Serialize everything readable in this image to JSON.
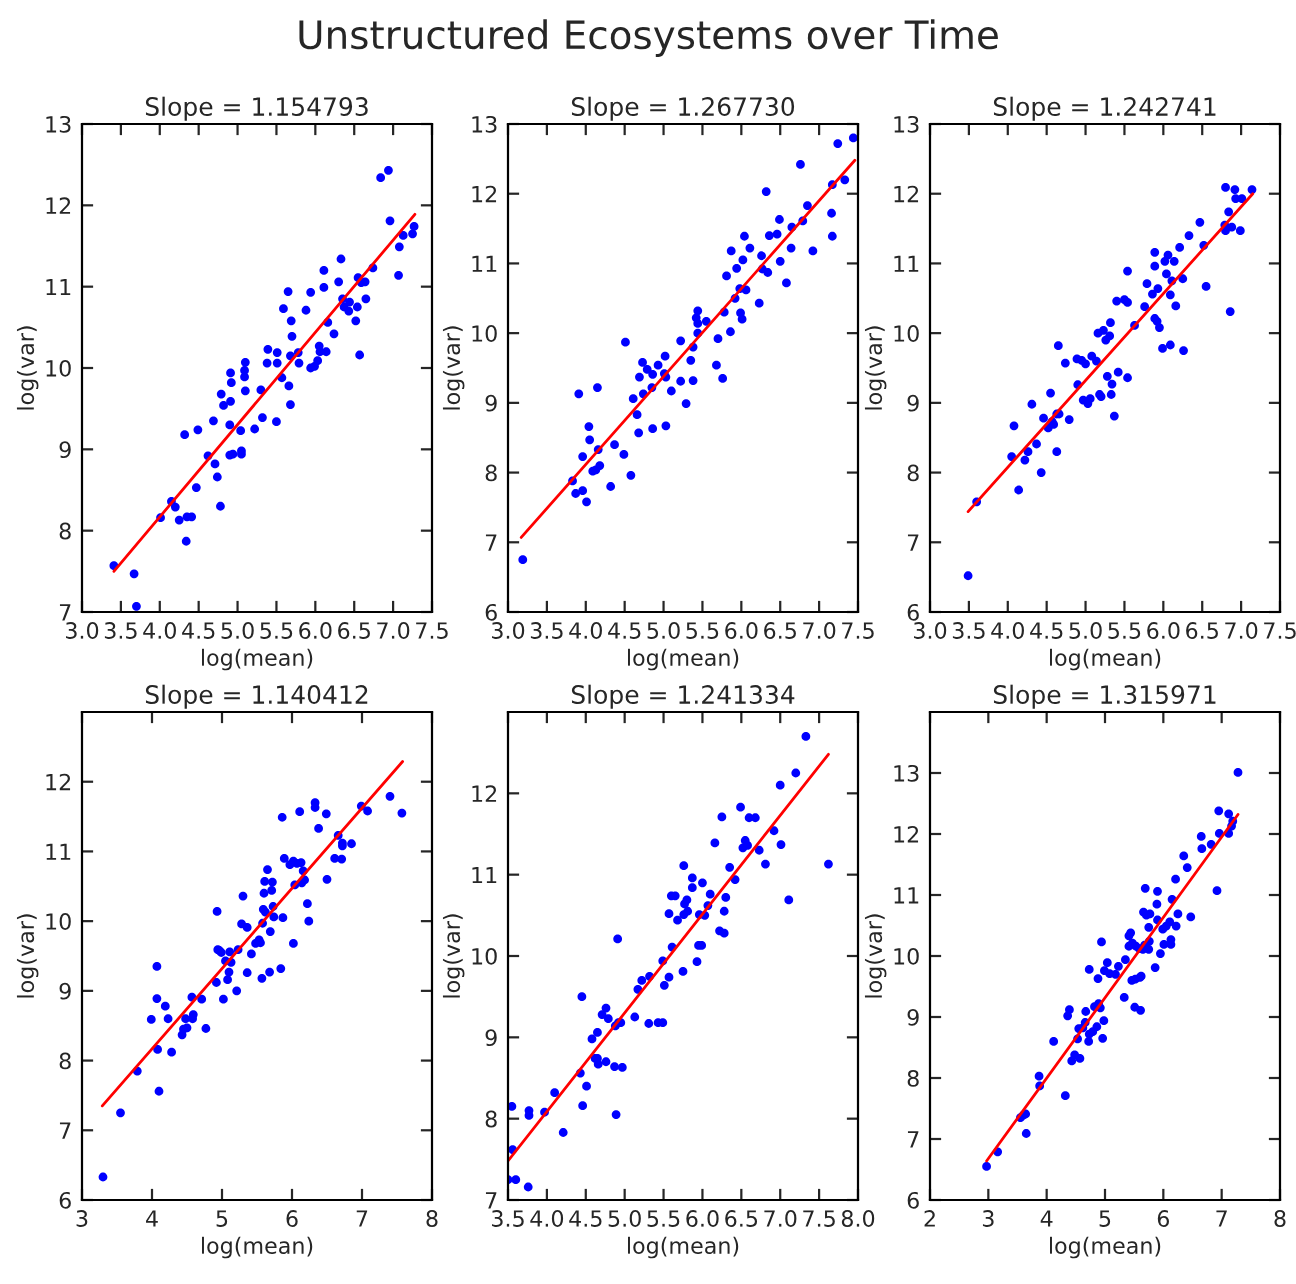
{
  "chart_data": [
    {
      "type": "scatter",
      "title": "Slope = 1.154793",
      "xlabel": "log(mean)",
      "ylabel": "log(var)",
      "annotations": [
        "Unstructured Ecosystems over Time"
      ],
      "xlim": [
        3.0,
        7.5
      ],
      "ylim": [
        7,
        13
      ],
      "xticks": [
        {
          "value": 3,
          "label": "3.0"
        },
        3.5,
        {
          "value": 4,
          "label": "4.0"
        },
        4.5,
        {
          "value": 5,
          "label": "5.0"
        },
        5.5,
        {
          "value": 6,
          "label": "6.0"
        },
        6.5,
        {
          "value": 7,
          "label": "7.0"
        },
        7.5
      ],
      "yticks": [
        7,
        8,
        9,
        10,
        11,
        12,
        13
      ],
      "grid": false,
      "marker": "circle",
      "series": [
        {
          "type": "scatter",
          "color": "#0000ff",
          "x": [
            3.41,
            3.67,
            3.7,
            4.01,
            4.15,
            4.2,
            4.25,
            4.32,
            4.34,
            4.35,
            4.41,
            4.47,
            4.49,
            4.62,
            4.69,
            4.71,
            4.74,
            4.78,
            4.79,
            4.82,
            4.9,
            4.91,
            4.91,
            4.92,
            4.9,
            4.94,
            5.04,
            5.05,
            5.05,
            5.09,
            5.1,
            5.09,
            5.1,
            5.22,
            5.3,
            5.32,
            5.39,
            5.38,
            5.5,
            5.51,
            5.51,
            5.57,
            5.59,
            5.65,
            5.66,
            5.68,
            5.68,
            5.69,
            5.7,
            5.78,
            5.79,
            5.88,
            5.94,
            5.94,
            5.99,
            6.03,
            6.05,
            6.06,
            6.11,
            6.11,
            6.14,
            6.16,
            6.24,
            6.3,
            6.33,
            6.35,
            6.37,
            6.43,
            6.44,
            6.52,
            6.54,
            6.55,
            6.57,
            6.59,
            6.64,
            6.65,
            6.74,
            6.84,
            6.94,
            6.96,
            7.07,
            7.08,
            7.13,
            7.25,
            7.27
          ],
          "values": [
            7.57,
            7.47,
            7.07,
            8.16,
            8.36,
            8.29,
            8.13,
            9.18,
            7.87,
            8.17,
            8.17,
            8.53,
            9.24,
            8.92,
            9.35,
            8.82,
            8.66,
            8.3,
            9.68,
            9.54,
            9.3,
            9.59,
            9.94,
            9.82,
            8.93,
            8.94,
            9.23,
            8.98,
            8.94,
            9.97,
            10.07,
            9.89,
            9.72,
            9.25,
            9.73,
            9.39,
            10.23,
            10.06,
            9.34,
            10.19,
            10.06,
            9.88,
            10.73,
            10.94,
            9.78,
            9.55,
            10.15,
            10.58,
            10.39,
            10.19,
            10.06,
            10.71,
            10.0,
            10.93,
            10.02,
            10.09,
            10.27,
            10.2,
            11.2,
            10.99,
            10.2,
            10.56,
            10.42,
            11.06,
            11.34,
            10.85,
            10.75,
            10.7,
            10.81,
            10.58,
            10.75,
            11.11,
            10.16,
            11.05,
            11.06,
            10.85,
            11.23,
            12.34,
            12.43,
            11.81,
            11.14,
            11.49,
            11.63,
            11.65,
            11.74
          ]
        },
        {
          "type": "line",
          "color": "#ff0000",
          "marker": "none",
          "x": [
            3.41,
            7.28
          ],
          "values": [
            7.5,
            11.89
          ]
        }
      ]
    },
    {
      "type": "scatter",
      "title": "Slope = 1.267730",
      "xlabel": "log(mean)",
      "ylabel": "log(var)",
      "xlim": [
        3.0,
        7.5
      ],
      "ylim": [
        6,
        13
      ],
      "xticks": [
        {
          "value": 3,
          "label": "3.0"
        },
        3.5,
        {
          "value": 4,
          "label": "4.0"
        },
        4.5,
        {
          "value": 5,
          "label": "5.0"
        },
        5.5,
        {
          "value": 6,
          "label": "6.0"
        },
        6.5,
        {
          "value": 7,
          "label": "7.0"
        },
        7.5
      ],
      "yticks": [
        6,
        7,
        8,
        9,
        10,
        11,
        12,
        13
      ],
      "grid": false,
      "marker": "circle",
      "series": [
        {
          "type": "scatter",
          "color": "#0000ff",
          "x": [
            3.19,
            3.83,
            3.87,
            3.91,
            3.96,
            3.96,
            4.01,
            4.04,
            4.05,
            4.09,
            4.13,
            4.15,
            4.16,
            4.18,
            4.32,
            4.37,
            4.49,
            4.51,
            4.58,
            4.61,
            4.66,
            4.68,
            4.69,
            4.73,
            4.74,
            4.79,
            4.85,
            4.86,
            4.86,
            4.93,
            5.01,
            5.02,
            5.03,
            5.03,
            5.1,
            5.22,
            5.22,
            5.29,
            5.35,
            5.38,
            5.38,
            5.42,
            5.44,
            5.44,
            5.44,
            5.55,
            5.68,
            5.7,
            5.76,
            5.78,
            5.81,
            5.86,
            5.87,
            5.92,
            5.94,
            5.98,
            5.99,
            6.01,
            6.02,
            6.04,
            6.06,
            6.11,
            6.23,
            6.26,
            6.27,
            6.32,
            6.34,
            6.36,
            6.46,
            6.49,
            6.5,
            6.58,
            6.64,
            6.65,
            6.76,
            6.79,
            6.85,
            6.92,
            7.16,
            7.17,
            7.17,
            7.24,
            7.33,
            7.44
          ],
          "values": [
            6.75,
            7.88,
            7.7,
            9.13,
            8.23,
            7.74,
            7.58,
            8.66,
            8.47,
            8.02,
            8.04,
            9.22,
            8.33,
            8.1,
            7.8,
            8.4,
            8.26,
            9.87,
            7.96,
            9.06,
            8.83,
            8.57,
            9.37,
            9.58,
            9.13,
            9.48,
            9.22,
            8.63,
            9.41,
            9.54,
            9.42,
            9.67,
            8.67,
            9.37,
            9.17,
            9.31,
            9.89,
            8.99,
            9.61,
            9.32,
            9.8,
            10.22,
            10.32,
            10.14,
            10.0,
            10.17,
            9.54,
            9.92,
            9.35,
            10.3,
            10.82,
            10.02,
            11.18,
            10.5,
            10.93,
            10.64,
            10.29,
            10.2,
            11.05,
            11.39,
            10.62,
            11.22,
            10.43,
            11.11,
            10.92,
            12.03,
            10.87,
            11.4,
            11.42,
            11.63,
            11.03,
            10.72,
            11.22,
            11.52,
            12.42,
            11.61,
            11.83,
            11.18,
            11.72,
            12.13,
            11.39,
            12.72,
            12.2,
            12.8
          ]
        },
        {
          "type": "line",
          "color": "#ff0000",
          "marker": "none",
          "x": [
            3.17,
            7.46
          ],
          "values": [
            7.07,
            12.48
          ]
        }
      ]
    },
    {
      "type": "scatter",
      "title": "Slope = 1.242741",
      "xlabel": "log(mean)",
      "ylabel": "log(var)",
      "xlim": [
        3.0,
        7.5
      ],
      "ylim": [
        6,
        13
      ],
      "xticks": [
        {
          "value": 3,
          "label": "3.0"
        },
        3.5,
        {
          "value": 4,
          "label": "4.0"
        },
        4.5,
        {
          "value": 5,
          "label": "5.0"
        },
        5.5,
        {
          "value": 6,
          "label": "6.0"
        },
        6.5,
        {
          "value": 7,
          "label": "7.0"
        },
        7.5
      ],
      "yticks": [
        6,
        7,
        8,
        9,
        10,
        11,
        12,
        13
      ],
      "grid": false,
      "marker": "circle",
      "series": [
        {
          "type": "scatter",
          "color": "#0000ff",
          "x": [
            3.49,
            3.6,
            4.05,
            4.08,
            4.14,
            4.22,
            4.26,
            4.31,
            4.37,
            4.43,
            4.46,
            4.52,
            4.55,
            4.57,
            4.59,
            4.63,
            4.63,
            4.65,
            4.66,
            4.74,
            4.79,
            4.9,
            4.89,
            4.95,
            4.97,
            5.0,
            5.03,
            5.06,
            5.08,
            5.14,
            5.16,
            5.18,
            5.2,
            5.23,
            5.26,
            5.28,
            5.31,
            5.32,
            5.33,
            5.34,
            5.37,
            5.4,
            5.42,
            5.5,
            5.54,
            5.54,
            5.54,
            5.63,
            5.76,
            5.79,
            5.86,
            5.89,
            5.89,
            5.89,
            5.92,
            5.93,
            5.95,
            5.99,
            6.02,
            6.04,
            6.06,
            6.09,
            6.09,
            6.11,
            6.14,
            6.16,
            6.21,
            6.25,
            6.26,
            6.33,
            6.47,
            6.52,
            6.55,
            6.79,
            6.8,
            6.8,
            6.84,
            6.86,
            6.88,
            6.92,
            6.93,
            6.99,
            7.01,
            7.14
          ],
          "values": [
            6.52,
            7.58,
            8.23,
            8.67,
            7.75,
            8.18,
            8.3,
            8.98,
            8.41,
            8.0,
            8.78,
            8.64,
            9.14,
            8.73,
            8.69,
            8.84,
            8.3,
            9.82,
            8.84,
            9.57,
            8.76,
            9.26,
            9.63,
            9.61,
            9.04,
            9.56,
            8.99,
            9.06,
            9.67,
            9.6,
            10.0,
            9.12,
            9.09,
            10.04,
            9.9,
            9.38,
            9.96,
            10.15,
            9.12,
            9.27,
            8.81,
            10.46,
            9.44,
            10.48,
            10.44,
            9.36,
            10.89,
            10.11,
            10.38,
            10.71,
            10.56,
            11.16,
            10.21,
            10.96,
            10.17,
            10.64,
            10.08,
            9.78,
            11.03,
            10.85,
            11.12,
            9.83,
            10.55,
            10.75,
            11.03,
            10.39,
            11.23,
            10.78,
            9.75,
            11.4,
            11.59,
            11.26,
            10.67,
            11.55,
            12.09,
            11.47,
            11.74,
            10.31,
            11.52,
            12.06,
            11.93,
            11.47,
            11.93,
            12.06
          ]
        },
        {
          "type": "line",
          "color": "#ff0000",
          "marker": "none",
          "x": [
            3.49,
            7.15
          ],
          "values": [
            7.44,
            12.0
          ]
        }
      ]
    },
    {
      "type": "scatter",
      "title": "Slope = 1.140412",
      "xlabel": "log(mean)",
      "ylabel": "log(var)",
      "xlim": [
        3,
        8
      ],
      "ylim": [
        6,
        13
      ],
      "xticks": [
        3,
        4,
        5,
        6,
        7,
        8
      ],
      "yticks": [
        6,
        7,
        8,
        9,
        10,
        11,
        12
      ],
      "grid": false,
      "marker": "circle",
      "series": [
        {
          "type": "scatter",
          "color": "#0000ff",
          "x": [
            3.3,
            3.55,
            3.79,
            3.99,
            4.07,
            4.07,
            4.08,
            4.1,
            4.19,
            4.23,
            4.28,
            4.43,
            4.45,
            4.48,
            4.5,
            4.57,
            4.58,
            4.59,
            4.71,
            4.77,
            4.92,
            4.93,
            4.94,
            4.96,
            4.99,
            5.02,
            5.05,
            5.08,
            5.1,
            5.11,
            5.13,
            5.21,
            5.23,
            5.28,
            5.3,
            5.36,
            5.36,
            5.42,
            5.48,
            5.53,
            5.55,
            5.57,
            5.58,
            5.59,
            5.6,
            5.61,
            5.62,
            5.65,
            5.68,
            5.69,
            5.71,
            5.72,
            5.73,
            5.74,
            5.84,
            5.86,
            5.87,
            5.89,
            5.97,
            6.02,
            6.02,
            6.04,
            6.07,
            6.11,
            6.13,
            6.14,
            6.16,
            6.18,
            6.22,
            6.24,
            6.33,
            6.33,
            6.38,
            6.49,
            6.5,
            6.61,
            6.66,
            6.71,
            6.72,
            6.72,
            6.85,
            6.99,
            7.08,
            7.4,
            7.57
          ],
          "values": [
            6.33,
            7.25,
            7.85,
            8.59,
            9.35,
            8.89,
            8.16,
            7.56,
            8.78,
            8.6,
            8.12,
            8.37,
            8.45,
            8.6,
            8.47,
            8.91,
            8.6,
            8.66,
            8.88,
            8.46,
            9.12,
            10.14,
            9.59,
            9.58,
            9.55,
            8.88,
            9.43,
            9.16,
            9.27,
            9.56,
            9.41,
            9.0,
            9.59,
            9.96,
            10.36,
            9.26,
            9.91,
            9.53,
            9.68,
            9.73,
            9.69,
            9.18,
            9.97,
            10.17,
            10.4,
            10.57,
            10.13,
            10.74,
            9.27,
            9.85,
            10.44,
            10.56,
            10.21,
            10.06,
            9.32,
            11.49,
            10.05,
            10.9,
            10.81,
            10.86,
            9.68,
            10.52,
            10.83,
            11.57,
            10.84,
            10.55,
            10.72,
            10.59,
            10.25,
            10.0,
            11.7,
            11.63,
            11.33,
            11.54,
            10.6,
            10.9,
            11.23,
            10.89,
            11.12,
            11.08,
            11.11,
            11.65,
            11.58,
            11.79,
            11.55
          ]
        },
        {
          "type": "line",
          "color": "#ff0000",
          "marker": "none",
          "x": [
            3.29,
            7.58
          ],
          "values": [
            7.35,
            12.29
          ]
        }
      ]
    },
    {
      "type": "scatter",
      "title": "Slope = 1.241334",
      "xlabel": "log(mean)",
      "ylabel": "log(var)",
      "xlim": [
        3.5,
        8.0
      ],
      "ylim": [
        7,
        13
      ],
      "xticks": [
        3.5,
        {
          "value": 4,
          "label": "4.0"
        },
        4.5,
        {
          "value": 5,
          "label": "5.0"
        },
        5.5,
        {
          "value": 6,
          "label": "6.0"
        },
        6.5,
        {
          "value": 7,
          "label": "7.0"
        },
        7.5,
        {
          "value": 8,
          "label": "8.0"
        }
      ],
      "yticks": [
        7,
        8,
        9,
        10,
        11,
        12
      ],
      "grid": false,
      "marker": "circle",
      "series": [
        {
          "type": "scatter",
          "color": "#0000ff",
          "x": [
            3.5,
            3.55,
            3.56,
            3.6,
            3.76,
            3.77,
            3.77,
            3.97,
            4.1,
            4.21,
            4.43,
            4.45,
            4.46,
            4.51,
            4.58,
            4.62,
            4.65,
            4.65,
            4.66,
            4.71,
            4.76,
            4.76,
            4.79,
            4.87,
            4.88,
            4.89,
            4.91,
            4.92,
            4.95,
            4.97,
            5.13,
            5.17,
            5.22,
            5.31,
            5.32,
            5.43,
            5.49,
            5.49,
            5.51,
            5.57,
            5.57,
            5.61,
            5.6,
            5.65,
            5.68,
            5.75,
            5.76,
            5.76,
            5.77,
            5.8,
            5.81,
            5.87,
            5.87,
            5.93,
            5.95,
            5.96,
            5.99,
            6.0,
            6.03,
            6.07,
            6.1,
            6.16,
            6.22,
            6.25,
            6.28,
            6.28,
            6.3,
            6.35,
            6.42,
            6.49,
            6.52,
            6.55,
            6.58,
            6.6,
            6.68,
            6.73,
            6.81,
            6.92,
            7.0,
            7.01,
            7.11,
            7.2,
            7.33,
            7.62
          ],
          "values": [
            7.25,
            8.15,
            7.62,
            7.25,
            7.16,
            8.1,
            8.04,
            8.08,
            8.32,
            7.83,
            8.56,
            9.5,
            8.16,
            8.4,
            8.98,
            8.74,
            9.06,
            8.74,
            8.67,
            9.28,
            9.36,
            8.7,
            9.23,
            8.64,
            9.14,
            8.05,
            10.21,
            9.18,
            9.18,
            8.63,
            9.25,
            9.59,
            9.7,
            9.17,
            9.75,
            9.18,
            9.18,
            9.94,
            9.64,
            9.74,
            10.52,
            10.11,
            10.74,
            10.74,
            10.44,
            9.81,
            11.11,
            10.51,
            10.64,
            10.69,
            10.55,
            10.84,
            10.96,
            9.93,
            10.13,
            10.51,
            10.13,
            10.9,
            10.5,
            10.62,
            10.76,
            11.39,
            10.31,
            11.71,
            10.55,
            10.28,
            10.72,
            11.09,
            10.94,
            11.83,
            11.33,
            11.42,
            11.36,
            11.7,
            11.7,
            11.3,
            11.13,
            11.54,
            12.1,
            11.37,
            10.69,
            12.25,
            12.7,
            11.13
          ]
        },
        {
          "type": "line",
          "color": "#ff0000",
          "marker": "none",
          "x": [
            3.5,
            7.62
          ],
          "values": [
            7.48,
            12.48
          ]
        }
      ]
    },
    {
      "type": "scatter",
      "title": "Slope = 1.315971",
      "xlabel": "log(mean)",
      "ylabel": "log(var)",
      "xlim": [
        2,
        8
      ],
      "ylim": [
        6,
        14
      ],
      "xticks": [
        2,
        3,
        4,
        5,
        6,
        7,
        8
      ],
      "yticks": [
        6,
        7,
        8,
        9,
        10,
        11,
        12,
        13
      ],
      "grid": false,
      "marker": "circle",
      "series": [
        {
          "type": "scatter",
          "color": "#0000ff",
          "x": [
            2.97,
            3.16,
            3.55,
            3.6,
            3.64,
            3.65,
            3.87,
            3.88,
            4.12,
            4.32,
            4.36,
            4.39,
            4.43,
            4.48,
            4.53,
            4.55,
            4.57,
            4.62,
            4.66,
            4.67,
            4.72,
            4.73,
            4.73,
            4.79,
            4.82,
            4.86,
            4.88,
            4.89,
            4.92,
            4.94,
            4.96,
            4.98,
            4.99,
            5.04,
            5.08,
            5.18,
            5.23,
            5.33,
            5.35,
            5.41,
            5.41,
            5.44,
            5.46,
            5.47,
            5.51,
            5.52,
            5.53,
            5.59,
            5.6,
            5.61,
            5.62,
            5.65,
            5.66,
            5.68,
            5.69,
            5.71,
            5.75,
            5.75,
            5.76,
            5.77,
            5.86,
            5.89,
            5.9,
            5.9,
            5.95,
            5.99,
            6.01,
            6.05,
            6.11,
            6.13,
            6.13,
            6.15,
            6.21,
            6.22,
            6.25,
            6.35,
            6.41,
            6.47,
            6.65,
            6.66,
            6.82,
            6.92,
            6.95,
            6.96,
            7.12,
            7.12,
            7.17,
            7.19,
            7.28
          ],
          "values": [
            6.55,
            6.79,
            7.35,
            7.39,
            7.41,
            7.09,
            8.03,
            7.87,
            8.6,
            7.71,
            9.02,
            9.12,
            8.28,
            8.38,
            8.64,
            8.81,
            8.32,
            8.82,
            8.91,
            9.09,
            8.6,
            8.72,
            9.78,
            8.76,
            9.17,
            8.84,
            9.63,
            9.22,
            9.15,
            10.23,
            8.65,
            8.94,
            9.76,
            9.89,
            9.71,
            9.7,
            9.83,
            9.32,
            9.94,
            10.33,
            10.16,
            10.38,
            9.6,
            10.21,
            9.16,
            9.62,
            10.16,
            10.12,
            9.65,
            9.11,
            9.67,
            10.11,
            10.72,
            10.18,
            11.11,
            10.67,
            10.47,
            10.11,
            10.24,
            10.69,
            9.81,
            10.85,
            11.06,
            10.59,
            10.04,
            10.44,
            10.19,
            10.49,
            10.56,
            10.27,
            10.19,
            10.93,
            11.26,
            10.49,
            10.69,
            11.64,
            11.45,
            10.64,
            11.96,
            11.76,
            11.83,
            11.07,
            12.38,
            12.01,
            12.33,
            12.01,
            12.13,
            12.21,
            13.01
          ]
        },
        {
          "type": "line",
          "color": "#ff0000",
          "marker": "none",
          "x": [
            2.97,
            7.28
          ],
          "values": [
            6.64,
            12.32
          ]
        }
      ]
    }
  ]
}
